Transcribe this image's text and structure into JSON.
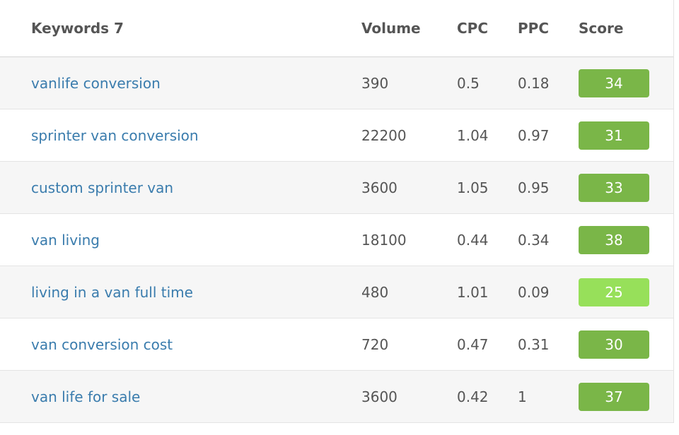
{
  "columns": {
    "keywords": "Keywords 7",
    "volume": "Volume",
    "cpc": "CPC",
    "ppc": "PPC",
    "score": "Score"
  },
  "rows": [
    {
      "keyword": "vanlife conversion",
      "volume": "390",
      "cpc": "0.5",
      "ppc": "0.18",
      "score": "34",
      "score_color": "#7ab648"
    },
    {
      "keyword": "sprinter van conversion",
      "volume": "22200",
      "cpc": "1.04",
      "ppc": "0.97",
      "score": "31",
      "score_color": "#7ab648"
    },
    {
      "keyword": "custom sprinter van",
      "volume": "3600",
      "cpc": "1.05",
      "ppc": "0.95",
      "score": "33",
      "score_color": "#7ab648"
    },
    {
      "keyword": "van living",
      "volume": "18100",
      "cpc": "0.44",
      "ppc": "0.34",
      "score": "38",
      "score_color": "#7ab648"
    },
    {
      "keyword": "living in a van full time",
      "volume": "480",
      "cpc": "1.01",
      "ppc": "0.09",
      "score": "25",
      "score_color": "#97e05a"
    },
    {
      "keyword": "van conversion cost",
      "volume": "720",
      "cpc": "0.47",
      "ppc": "0.31",
      "score": "30",
      "score_color": "#7ab648"
    },
    {
      "keyword": "van life for sale",
      "volume": "3600",
      "cpc": "0.42",
      "ppc": "1",
      "score": "37",
      "score_color": "#7ab648"
    }
  ]
}
